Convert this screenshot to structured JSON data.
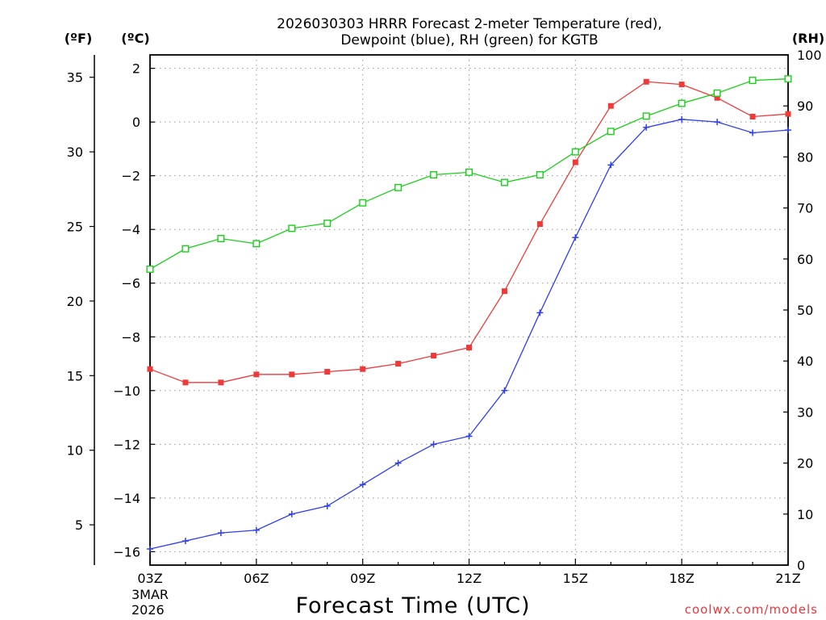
{
  "chart_data": {
    "type": "line",
    "title_line1": "2026030303 HRRR Forecast 2-meter Temperature (red),",
    "title_line2": "Dewpoint (blue), RH (green) for KGTB",
    "xlabel": "Forecast Time (UTC)",
    "date_labels": [
      "3MAR",
      "2026"
    ],
    "credit": "coolwx.com/models",
    "unit_labels": {
      "fahrenheit": "(ºF)",
      "celsius": "(ºC)",
      "rh": "(RH)"
    },
    "x_hours": [
      3,
      4,
      5,
      6,
      7,
      8,
      9,
      10,
      11,
      12,
      13,
      14,
      15,
      16,
      17,
      18,
      19,
      20,
      21
    ],
    "x_ticks": [
      {
        "hour": 3,
        "label": "03Z"
      },
      {
        "hour": 6,
        "label": "06Z"
      },
      {
        "hour": 9,
        "label": "09Z"
      },
      {
        "hour": 12,
        "label": "12Z"
      },
      {
        "hour": 15,
        "label": "15Z"
      },
      {
        "hour": 18,
        "label": "18Z"
      },
      {
        "hour": 21,
        "label": "21Z"
      }
    ],
    "celsius_axis": {
      "min": -16.5,
      "max": 2.5,
      "ticks": [
        2,
        0,
        -2,
        -4,
        -6,
        -8,
        -10,
        -12,
        -14,
        -16
      ]
    },
    "fahrenheit_axis": {
      "ticks": [
        35,
        30,
        25,
        20,
        15,
        10,
        5
      ]
    },
    "rh_axis": {
      "min": 0,
      "max": 100,
      "ticks": [
        0,
        10,
        20,
        30,
        40,
        50,
        60,
        70,
        80,
        90,
        100
      ]
    },
    "series": [
      {
        "name": "2-meter Temperature",
        "axis": "celsius",
        "color": "#ef3a3a",
        "marker": "filled-square",
        "values": [
          -9.2,
          -9.7,
          -9.7,
          -9.4,
          -9.4,
          -9.3,
          -9.2,
          -9.0,
          -8.7,
          -8.4,
          -6.3,
          -3.8,
          -1.5,
          0.6,
          1.5,
          1.4,
          0.9,
          0.2,
          0.3
        ]
      },
      {
        "name": "Dewpoint",
        "axis": "celsius",
        "color": "#2f3ff0",
        "marker": "plus",
        "values": [
          -15.9,
          -15.6,
          -15.3,
          -15.2,
          -14.6,
          -14.3,
          -13.5,
          -12.7,
          -12.0,
          -11.7,
          -10.0,
          -7.1,
          -4.3,
          -1.6,
          -0.2,
          0.1,
          0.0,
          -0.4,
          -0.3
        ]
      },
      {
        "name": "Relative Humidity",
        "axis": "rh",
        "color": "#19d019",
        "marker": "hollow-square",
        "values": [
          58,
          62,
          64,
          63,
          66,
          67,
          71,
          74,
          76.5,
          77,
          75,
          76.5,
          81,
          85,
          88,
          90.5,
          92.5,
          95,
          95.3
        ]
      }
    ]
  }
}
